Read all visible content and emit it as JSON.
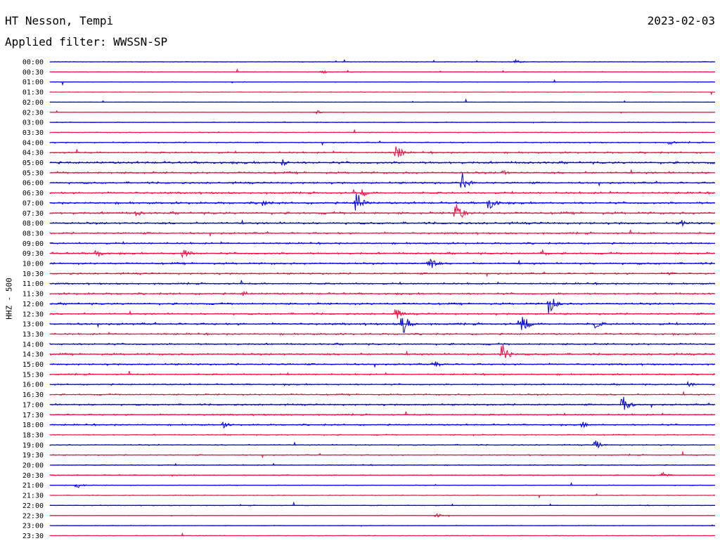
{
  "header": {
    "station": "HT Nesson, Tempi",
    "date": "2023-02-03",
    "filter": "Applied filter: WWSSN-SP"
  },
  "chart_data": {
    "type": "line",
    "title": "HT Nesson, Tempi",
    "subtitle": "Applied filter: WWSSN-SP",
    "ylabel": "HHZ - 500",
    "colors": {
      "odd": "#0000dd",
      "even": "#ee1144"
    },
    "rows": [
      "00:00",
      "00:30",
      "01:00",
      "01:30",
      "02:00",
      "02:30",
      "03:00",
      "03:30",
      "04:00",
      "04:30",
      "05:00",
      "05:30",
      "06:00",
      "06:30",
      "07:00",
      "07:30",
      "08:00",
      "08:30",
      "09:00",
      "09:30",
      "10:00",
      "10:30",
      "11:00",
      "11:30",
      "12:00",
      "12:30",
      "13:00",
      "13:30",
      "14:00",
      "14:30",
      "15:00",
      "15:30",
      "16:00",
      "16:30",
      "17:00",
      "17:30",
      "18:00",
      "18:30",
      "19:00",
      "19:30",
      "20:00",
      "20:30",
      "21:00",
      "21:30",
      "22:00",
      "22:30",
      "23:00",
      "23:30"
    ],
    "noise_level": [
      0.3,
      0.3,
      0.3,
      0.3,
      0.2,
      0.3,
      0.4,
      0.4,
      0.6,
      0.9,
      1.2,
      1.1,
      1.0,
      1.0,
      1.1,
      1.2,
      1.1,
      1.0,
      0.9,
      1.0,
      1.0,
      0.9,
      0.9,
      1.0,
      1.0,
      0.9,
      1.1,
      0.9,
      1.0,
      1.0,
      0.9,
      0.8,
      0.8,
      0.8,
      0.9,
      0.8,
      0.8,
      0.6,
      0.6,
      0.6,
      0.5,
      0.5,
      0.4,
      0.4,
      0.4,
      0.3,
      0.3,
      0.3
    ],
    "events": [
      {
        "row": "00:00",
        "t": 0.7,
        "amp": 3
      },
      {
        "row": "00:30",
        "t": 0.41,
        "amp": 3
      },
      {
        "row": "02:30",
        "t": 0.4,
        "amp": 3
      },
      {
        "row": "04:00",
        "t": 0.93,
        "amp": 4
      },
      {
        "row": "04:30",
        "t": 0.52,
        "amp": 14
      },
      {
        "row": "05:00",
        "t": 0.35,
        "amp": 6
      },
      {
        "row": "05:30",
        "t": 0.68,
        "amp": 5
      },
      {
        "row": "06:00",
        "t": 0.62,
        "amp": 16
      },
      {
        "row": "06:30",
        "t": 0.47,
        "amp": 6
      },
      {
        "row": "07:00",
        "t": 0.46,
        "amp": 20
      },
      {
        "row": "07:00",
        "t": 0.66,
        "amp": 14
      },
      {
        "row": "07:00",
        "t": 0.32,
        "amp": 5
      },
      {
        "row": "07:30",
        "t": 0.61,
        "amp": 22
      },
      {
        "row": "07:30",
        "t": 0.13,
        "amp": 5
      },
      {
        "row": "08:00",
        "t": 0.95,
        "amp": 5
      },
      {
        "row": "09:30",
        "t": 0.07,
        "amp": 8
      },
      {
        "row": "09:30",
        "t": 0.2,
        "amp": 10
      },
      {
        "row": "09:30",
        "t": 0.74,
        "amp": 6
      },
      {
        "row": "10:00",
        "t": 0.57,
        "amp": 14
      },
      {
        "row": "10:30",
        "t": 0.93,
        "amp": 4
      },
      {
        "row": "11:30",
        "t": 0.29,
        "amp": 5
      },
      {
        "row": "12:00",
        "t": 0.75,
        "amp": 18
      },
      {
        "row": "12:30",
        "t": 0.52,
        "amp": 10
      },
      {
        "row": "13:00",
        "t": 0.53,
        "amp": 20
      },
      {
        "row": "13:00",
        "t": 0.71,
        "amp": 16
      },
      {
        "row": "13:00",
        "t": 0.82,
        "amp": 8
      },
      {
        "row": "14:30",
        "t": 0.68,
        "amp": 18
      },
      {
        "row": "15:00",
        "t": 0.58,
        "amp": 6
      },
      {
        "row": "16:00",
        "t": 0.96,
        "amp": 5
      },
      {
        "row": "17:00",
        "t": 0.86,
        "amp": 18
      },
      {
        "row": "18:00",
        "t": 0.26,
        "amp": 6
      },
      {
        "row": "18:00",
        "t": 0.8,
        "amp": 5
      },
      {
        "row": "19:00",
        "t": 0.82,
        "amp": 7
      },
      {
        "row": "20:30",
        "t": 0.92,
        "amp": 5
      },
      {
        "row": "21:00",
        "t": 0.04,
        "amp": 5
      },
      {
        "row": "22:30",
        "t": 0.58,
        "amp": 4
      }
    ]
  }
}
